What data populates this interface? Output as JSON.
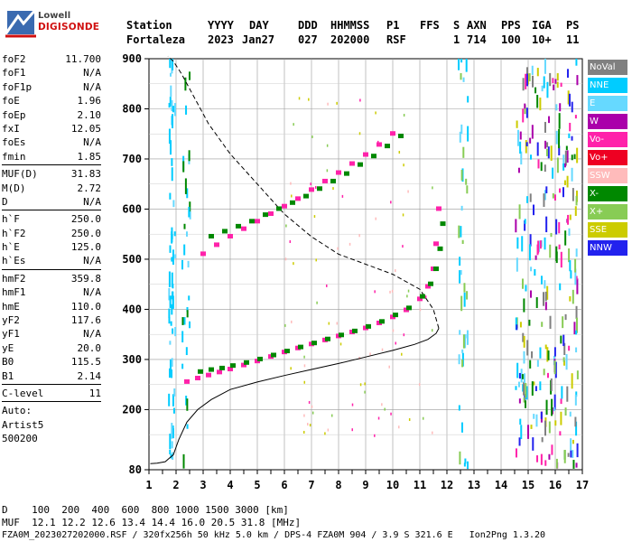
{
  "logo": {
    "brand": "Lowell",
    "product": "DIGISONDE"
  },
  "header": {
    "row1": [
      "Station",
      "YYYY",
      "DAY",
      "DDD",
      "HHMMSS",
      "P1",
      "FFS",
      "S",
      "AXN",
      "PPS",
      "IGA",
      "PS"
    ],
    "row2": [
      "Fortaleza",
      "2023",
      "Jan27",
      "027",
      "202000",
      "RSF",
      "1",
      "714",
      "100",
      "10+",
      "11"
    ]
  },
  "params": {
    "group1": [
      {
        "label": "foF2",
        "value": "11.700"
      },
      {
        "label": "foF1",
        "value": "N/A"
      },
      {
        "label": "foF1p",
        "value": "N/A"
      },
      {
        "label": "foE",
        "value": "1.96"
      },
      {
        "label": "foEp",
        "value": "2.10"
      },
      {
        "label": "fxI",
        "value": "12.05"
      },
      {
        "label": "foEs",
        "value": "N/A"
      },
      {
        "label": "fmin",
        "value": "1.85"
      }
    ],
    "group2": [
      {
        "label": "MUF(D)",
        "value": "31.83"
      },
      {
        "label": "M(D)",
        "value": "2.72"
      },
      {
        "label": "D",
        "value": "N/A"
      }
    ],
    "group3": [
      {
        "label": "h`F",
        "value": "250.0"
      },
      {
        "label": "h`F2",
        "value": "250.0"
      },
      {
        "label": "h`E",
        "value": "125.0"
      },
      {
        "label": "h`Es",
        "value": "N/A"
      }
    ],
    "group4": [
      {
        "label": "hmF2",
        "value": "359.8"
      },
      {
        "label": "hmF1",
        "value": "N/A"
      },
      {
        "label": "hmE",
        "value": "110.0"
      },
      {
        "label": "yF2",
        "value": "117.6"
      },
      {
        "label": "yF1",
        "value": "N/A"
      },
      {
        "label": "yE",
        "value": "20.0"
      },
      {
        "label": "B0",
        "value": "115.5"
      },
      {
        "label": "B1",
        "value": "2.14"
      }
    ],
    "group5": [
      {
        "label": "C-level",
        "value": "11"
      }
    ],
    "extra": [
      "Auto:",
      "Artist5",
      "500200"
    ]
  },
  "legend": [
    {
      "label": "NoVal",
      "bg": "#808080",
      "fg": "#ffffff"
    },
    {
      "label": "NNE",
      "bg": "#00ccff",
      "fg": "#ffffff"
    },
    {
      "label": "E",
      "bg": "#66d9ff",
      "fg": "#ffffff"
    },
    {
      "label": "W",
      "bg": "#aa00aa",
      "fg": "#ffffff"
    },
    {
      "label": "Vo-",
      "bg": "#ff22aa",
      "fg": "#ffffff"
    },
    {
      "label": "Vo+",
      "bg": "#ee0022",
      "fg": "#ffffff"
    },
    {
      "label": "SSW",
      "bg": "#ffbbbb",
      "fg": "#ffffff"
    },
    {
      "label": "X-",
      "bg": "#008800",
      "fg": "#ffffff"
    },
    {
      "label": "X+",
      "bg": "#88cc55",
      "fg": "#ffffff"
    },
    {
      "label": "SSE",
      "bg": "#cccc00",
      "fg": "#ffffff"
    },
    {
      "label": "NNW",
      "bg": "#2222ee",
      "fg": "#ffffff"
    }
  ],
  "footer": {
    "distance": "D    100  200  400  600  800 1000 1500 3000 [km]",
    "muf": "MUF  12.1 12.2 12.6 13.4 14.4 16.0 20.5 31.8 [MHz]",
    "info": "FZA0M_2023027202000.RSF / 320fx256h 50 kHz 5.0 km / DPS-4 FZA0M 904 / 3.9 S 321.6 E   Ion2Png 1.3.20"
  },
  "chart_data": {
    "type": "scatter",
    "title": "",
    "xlabel": "",
    "ylabel": "",
    "xlim": [
      1,
      17
    ],
    "ylim": [
      80,
      900
    ],
    "x_ticks": [
      "1",
      "2",
      "3",
      "4",
      "5",
      "6",
      "7",
      "8",
      "9",
      "10",
      "11",
      "12",
      "13",
      "14",
      "15",
      "16",
      "17"
    ],
    "y_ticks": [
      "80",
      "200",
      "300",
      "400",
      "500",
      "600",
      "700",
      "800",
      "900"
    ],
    "grid": true,
    "series": [
      {
        "name": "Vo-",
        "color": "#ff22aa",
        "x": [
          2.4,
          2.8,
          3.2,
          3.6,
          4.0,
          4.5,
          5.0,
          5.5,
          6.0,
          6.5,
          7.0,
          7.5,
          8.0,
          8.5,
          9.0,
          9.5,
          10.0,
          10.5,
          11.0,
          11.3,
          11.5,
          11.6,
          11.7
        ],
        "y": [
          255,
          262,
          268,
          274,
          280,
          288,
          296,
          305,
          314,
          322,
          330,
          338,
          346,
          354,
          362,
          372,
          384,
          398,
          420,
          445,
          480,
          530,
          600
        ]
      },
      {
        "name": "X-",
        "color": "#008800",
        "x": [
          2.9,
          3.3,
          3.7,
          4.1,
          4.6,
          5.1,
          5.6,
          6.1,
          6.6,
          7.1,
          7.6,
          8.1,
          8.6,
          9.1,
          9.6,
          10.1,
          10.6,
          11.1,
          11.4,
          11.6,
          11.75,
          11.85
        ],
        "y": [
          275,
          279,
          282,
          287,
          293,
          300,
          308,
          316,
          324,
          332,
          340,
          348,
          356,
          365,
          375,
          388,
          402,
          425,
          450,
          480,
          520,
          570
        ]
      },
      {
        "name": "Vo- 2nd",
        "color": "#ff22aa",
        "x": [
          3.0,
          3.5,
          4.0,
          4.5,
          5.0,
          5.5,
          6.0,
          6.5,
          7.0,
          7.5,
          8.0,
          8.5,
          9.0,
          9.5,
          10.0
        ],
        "y": [
          510,
          528,
          545,
          560,
          575,
          590,
          605,
          620,
          638,
          655,
          672,
          690,
          708,
          728,
          750
        ]
      },
      {
        "name": "X- 2nd",
        "color": "#008800",
        "x": [
          3.3,
          3.8,
          4.3,
          4.8,
          5.3,
          5.8,
          6.3,
          6.8,
          7.3,
          7.8,
          8.3,
          8.8,
          9.3,
          9.8,
          10.3
        ],
        "y": [
          545,
          555,
          565,
          575,
          588,
          600,
          612,
          625,
          640,
          655,
          670,
          688,
          705,
          725,
          745
        ]
      }
    ],
    "profile_line": {
      "x": [
        1.05,
        1.3,
        1.6,
        1.9,
        2.1,
        2.4,
        2.8,
        3.3,
        4.0,
        5.0,
        6.0,
        7.0,
        8.0,
        9.0,
        10.0,
        10.8,
        11.3,
        11.6,
        11.7
      ],
      "y": [
        92,
        93,
        96,
        110,
        140,
        175,
        200,
        220,
        240,
        255,
        268,
        280,
        292,
        305,
        318,
        330,
        340,
        352,
        362
      ]
    },
    "profile_upper": {
      "x": [
        11.7,
        11.5,
        11.0,
        10.0,
        9.0,
        8.0,
        7.0,
        6.0,
        5.0,
        4.0,
        3.2,
        2.6,
        2.2,
        1.9,
        1.7
      ],
      "y": [
        362,
        400,
        440,
        470,
        490,
        510,
        545,
        590,
        650,
        710,
        770,
        830,
        870,
        895,
        905
      ]
    }
  }
}
